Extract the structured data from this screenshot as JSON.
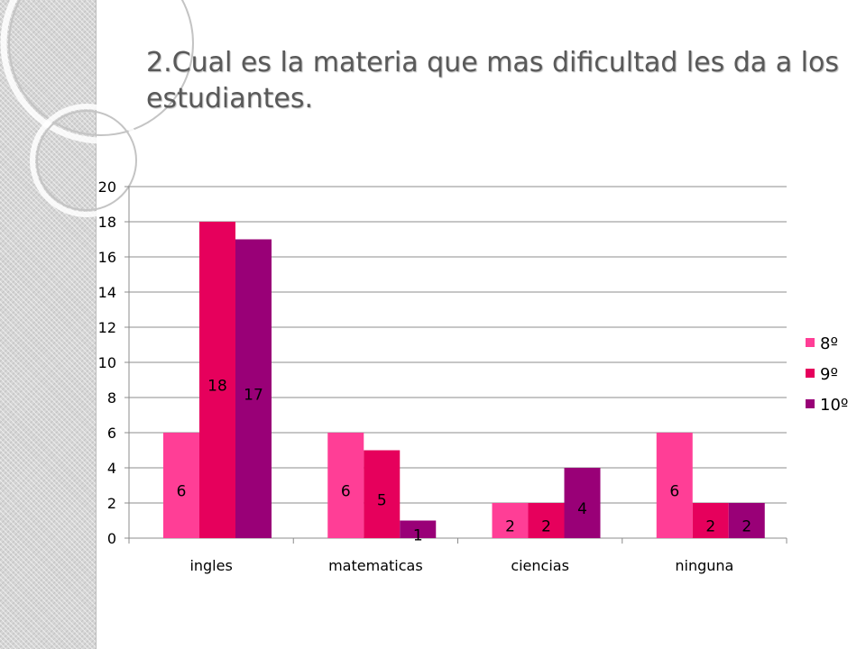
{
  "slide": {
    "title": "2.Cual es la materia que mas dificultad les da a los estudiantes."
  },
  "colors": {
    "series": [
      "#ff3e96",
      "#e6005c",
      "#990077"
    ],
    "gridline": "#8c8c8c",
    "background_strip": "#d6d6d6"
  },
  "chart_data": {
    "type": "bar",
    "title": "",
    "xlabel": "",
    "ylabel": "",
    "ylim": [
      0,
      20
    ],
    "yticks": [
      "0",
      "2",
      "4",
      "6",
      "8",
      "10",
      "12",
      "14",
      "16",
      "18",
      "20"
    ],
    "grid": true,
    "legend_position": "right",
    "categories": [
      "ingles",
      "matematicas",
      "ciencias",
      "ninguna"
    ],
    "series": [
      {
        "name": "8º",
        "values": [
          6,
          6,
          2,
          6
        ]
      },
      {
        "name": "9º",
        "values": [
          18,
          5,
          2,
          2
        ]
      },
      {
        "name": "10º",
        "values": [
          17,
          1,
          4,
          2
        ]
      }
    ],
    "data_labels": [
      [
        "6",
        "6",
        "2",
        "6"
      ],
      [
        "18",
        "5",
        "2",
        "2"
      ],
      [
        "17",
        "1",
        "4",
        "2"
      ]
    ]
  }
}
